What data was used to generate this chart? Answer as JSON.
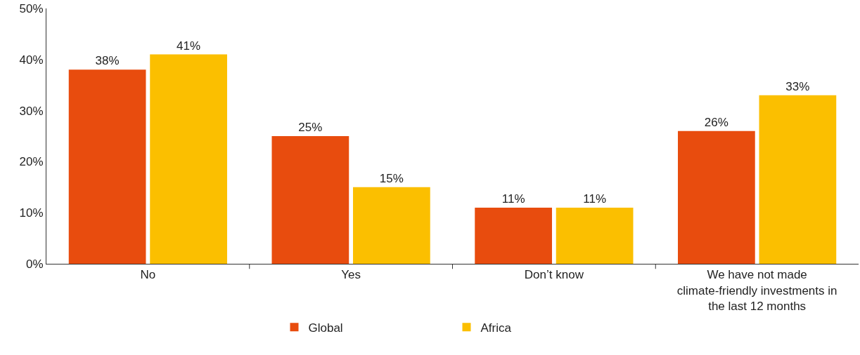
{
  "chart_data": {
    "type": "bar",
    "categories": [
      "No",
      "Yes",
      "Don’t know",
      "We have not made\nclimate-friendly investments in\nthe last 12 months"
    ],
    "series": [
      {
        "name": "Global",
        "color": "#e84c0e",
        "values": [
          38,
          25,
          11,
          26
        ],
        "value_labels": [
          "38%",
          "25%",
          "11%",
          "26%"
        ]
      },
      {
        "name": "Africa",
        "color": "#fbbf00",
        "values": [
          41,
          15,
          11,
          33
        ],
        "value_labels": [
          "41%",
          "15%",
          "11%",
          "33%"
        ]
      }
    ],
    "ylim": [
      0,
      50
    ],
    "yticks": [
      {
        "value": 0,
        "label": "0%"
      },
      {
        "value": 10,
        "label": "10%"
      },
      {
        "value": 20,
        "label": "20%"
      },
      {
        "value": 30,
        "label": "30%"
      },
      {
        "value": 40,
        "label": "40%"
      },
      {
        "value": 50,
        "label": "50%"
      }
    ],
    "grid": false,
    "legend": "bottom"
  }
}
